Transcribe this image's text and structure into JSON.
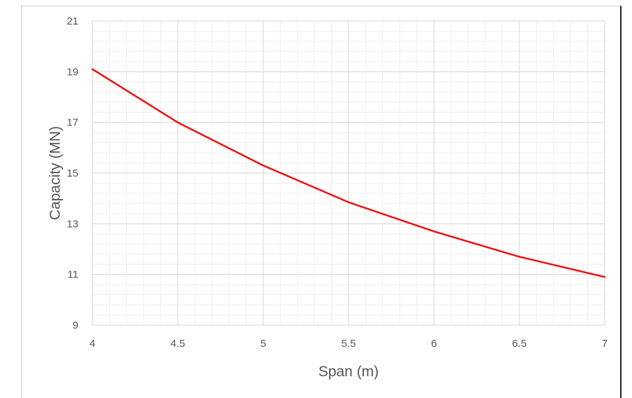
{
  "chart_data": {
    "type": "line",
    "title": "",
    "xlabel": "Span (m)",
    "ylabel": "Capacity (MN)",
    "xlim": [
      4,
      7
    ],
    "ylim": [
      9,
      21
    ],
    "x_ticks": [
      4,
      4.5,
      5,
      5.5,
      6,
      6.5,
      7
    ],
    "x_tick_labels": [
      "4",
      "4.5",
      "5",
      "5.5",
      "6",
      "6.5",
      "7"
    ],
    "y_ticks": [
      9,
      11,
      13,
      15,
      17,
      19,
      21
    ],
    "y_tick_labels": [
      "9",
      "11",
      "13",
      "15",
      "17",
      "19",
      "21"
    ],
    "grid": true,
    "minor_grid": true,
    "legend": "none",
    "series": [
      {
        "color": "#ee1111",
        "x": [
          4,
          4.5,
          5,
          5.5,
          6,
          6.5,
          7
        ],
        "y": [
          19.1,
          17.0,
          15.3,
          13.85,
          12.7,
          11.7,
          10.9
        ]
      }
    ]
  }
}
